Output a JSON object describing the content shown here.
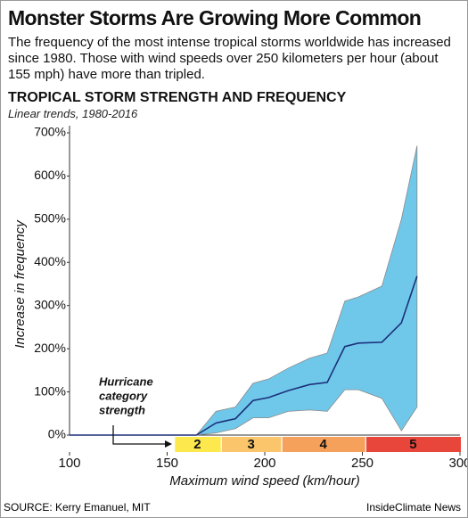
{
  "chart_data": {
    "type": "band-line",
    "title": "Monster Storms Are Growing More Common",
    "description": "The frequency of the most intense tropical storms worldwide has increased since 1980. Those with wind speeds over 250 kilometers per hour (about 155 mph) have more than tripled.",
    "subtitle": "TROPICAL STORM STRENGTH AND FREQUENCY",
    "note": "Linear trends, 1980-2016",
    "x_label": "Maximum wind speed (km/hour)",
    "y_label": "Increase in frequency",
    "annotation": [
      "Hurricane",
      "category",
      "strength"
    ],
    "source": "SOURCE: Kerry Emanuel, MIT",
    "credit": "InsideClimate News",
    "x": [
      100,
      165,
      175,
      185,
      194,
      202,
      212,
      223,
      232,
      241,
      248,
      260,
      270,
      278
    ],
    "values": [
      0,
      0,
      28,
      38,
      80,
      87,
      103,
      117,
      122,
      205,
      213,
      215,
      260,
      368
    ],
    "band_upper": [
      0,
      0,
      55,
      65,
      120,
      130,
      155,
      178,
      190,
      310,
      320,
      345,
      500,
      670
    ],
    "band_lower": [
      0,
      0,
      5,
      15,
      40,
      40,
      55,
      58,
      55,
      105,
      105,
      85,
      10,
      65
    ],
    "line_color": "#1b2f7a",
    "band_color": "#6fc8ea",
    "band_edge_color": "#8a8a8a",
    "hurricane_categories": [
      {
        "label": "2",
        "from": 154,
        "to": 177,
        "color": "#fde84e"
      },
      {
        "label": "3",
        "from": 178,
        "to": 208,
        "color": "#fbc56b"
      },
      {
        "label": "4",
        "from": 209,
        "to": 251,
        "color": "#f5a05b"
      },
      {
        "label": "5",
        "from": 252,
        "to": 300,
        "color": "#e8453b"
      }
    ],
    "xlim": [
      100,
      300
    ],
    "xticks": [
      100,
      150,
      200,
      250,
      300
    ],
    "ylim": [
      0,
      700
    ],
    "yticks": [
      {
        "value": 0,
        "label": "0%"
      },
      {
        "value": 100,
        "label": "100%"
      },
      {
        "value": 200,
        "label": "200%"
      },
      {
        "value": 300,
        "label": "300%"
      },
      {
        "value": 400,
        "label": "400%"
      },
      {
        "value": 500,
        "label": "500%"
      },
      {
        "value": 600,
        "label": "600%"
      },
      {
        "value": 700,
        "label": "700%"
      }
    ]
  }
}
